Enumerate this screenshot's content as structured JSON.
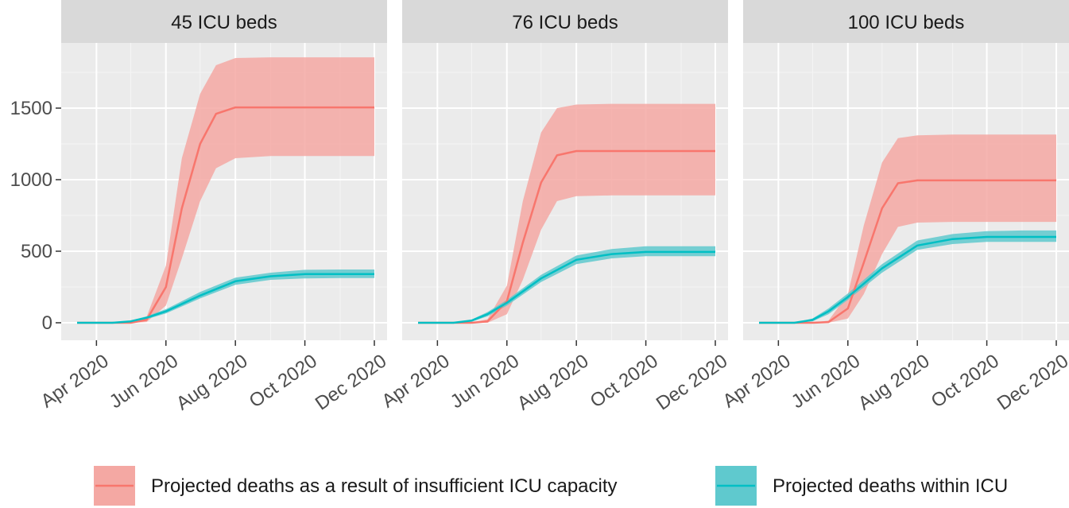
{
  "chart_data": {
    "type": "line",
    "facets": [
      {
        "title": "45 ICU beds",
        "series": [
          {
            "name": "Projected deaths as a result of insufficient ICU capacity",
            "color": "#F8766D",
            "points": [
              [
                "2020-03-15",
                0
              ],
              [
                "2020-04-15",
                0
              ],
              [
                "2020-05-01",
                0
              ],
              [
                "2020-05-15",
                20
              ],
              [
                "2020-06-01",
                250
              ],
              [
                "2020-06-15",
                800
              ],
              [
                "2020-07-01",
                1250
              ],
              [
                "2020-07-15",
                1460
              ],
              [
                "2020-08-01",
                1505
              ],
              [
                "2020-09-01",
                1505
              ],
              [
                "2020-10-01",
                1505
              ],
              [
                "2020-11-01",
                1505
              ],
              [
                "2020-12-01",
                1505
              ]
            ],
            "lower": [
              0,
              0,
              0,
              5,
              120,
              450,
              850,
              1080,
              1150,
              1165,
              1165,
              1165,
              1165
            ],
            "upper": [
              0,
              0,
              0,
              40,
              400,
              1150,
              1600,
              1800,
              1850,
              1855,
              1855,
              1855,
              1855
            ]
          },
          {
            "name": "Projected deaths within ICU",
            "color": "#00BFC4",
            "points": [
              [
                "2020-03-15",
                0
              ],
              [
                "2020-04-15",
                0
              ],
              [
                "2020-05-01",
                10
              ],
              [
                "2020-05-15",
                35
              ],
              [
                "2020-06-01",
                80
              ],
              [
                "2020-07-01",
                190
              ],
              [
                "2020-08-01",
                290
              ],
              [
                "2020-09-01",
                325
              ],
              [
                "2020-10-01",
                340
              ],
              [
                "2020-11-01",
                340
              ],
              [
                "2020-12-01",
                340
              ]
            ],
            "lower": [
              0,
              0,
              5,
              25,
              65,
              170,
              265,
              300,
              310,
              312,
              312
            ],
            "upper": [
              0,
              0,
              15,
              45,
              95,
              215,
              315,
              350,
              370,
              372,
              372
            ]
          }
        ]
      },
      {
        "title": "76 ICU beds",
        "series": [
          {
            "name": "Projected deaths as a result of insufficient ICU capacity",
            "color": "#F8766D",
            "points": [
              [
                "2020-03-15",
                0
              ],
              [
                "2020-04-15",
                0
              ],
              [
                "2020-05-01",
                0
              ],
              [
                "2020-05-15",
                10
              ],
              [
                "2020-06-01",
                150
              ],
              [
                "2020-06-15",
                560
              ],
              [
                "2020-07-01",
                980
              ],
              [
                "2020-07-15",
                1170
              ],
              [
                "2020-08-01",
                1200
              ],
              [
                "2020-09-01",
                1200
              ],
              [
                "2020-10-01",
                1200
              ],
              [
                "2020-11-01",
                1200
              ],
              [
                "2020-12-01",
                1200
              ]
            ],
            "lower": [
              0,
              0,
              0,
              0,
              60,
              300,
              650,
              850,
              885,
              890,
              890,
              890,
              890
            ],
            "upper": [
              0,
              0,
              0,
              25,
              260,
              850,
              1330,
              1500,
              1525,
              1530,
              1530,
              1530,
              1530
            ]
          },
          {
            "name": "Projected deaths within ICU",
            "color": "#00BFC4",
            "points": [
              [
                "2020-03-15",
                0
              ],
              [
                "2020-04-15",
                0
              ],
              [
                "2020-05-01",
                15
              ],
              [
                "2020-05-15",
                60
              ],
              [
                "2020-06-01",
                140
              ],
              [
                "2020-07-01",
                310
              ],
              [
                "2020-08-01",
                440
              ],
              [
                "2020-09-01",
                480
              ],
              [
                "2020-10-01",
                495
              ],
              [
                "2020-11-01",
                495
              ],
              [
                "2020-12-01",
                495
              ]
            ],
            "lower": [
              0,
              0,
              8,
              45,
              120,
              285,
              410,
              450,
              465,
              465,
              465
            ],
            "upper": [
              0,
              0,
              22,
              75,
              160,
              335,
              470,
              515,
              535,
              535,
              535
            ]
          }
        ]
      },
      {
        "title": "100 ICU beds",
        "series": [
          {
            "name": "Projected deaths as a result of insufficient ICU capacity",
            "color": "#F8766D",
            "points": [
              [
                "2020-03-15",
                0
              ],
              [
                "2020-04-15",
                0
              ],
              [
                "2020-05-01",
                0
              ],
              [
                "2020-05-15",
                5
              ],
              [
                "2020-06-01",
                100
              ],
              [
                "2020-06-15",
                420
              ],
              [
                "2020-07-01",
                800
              ],
              [
                "2020-07-15",
                975
              ],
              [
                "2020-08-01",
                995
              ],
              [
                "2020-09-01",
                995
              ],
              [
                "2020-10-01",
                995
              ],
              [
                "2020-11-01",
                995
              ],
              [
                "2020-12-01",
                995
              ]
            ],
            "lower": [
              0,
              0,
              0,
              0,
              30,
              200,
              480,
              670,
              700,
              705,
              705,
              705,
              705
            ],
            "upper": [
              0,
              0,
              0,
              15,
              200,
              680,
              1120,
              1290,
              1310,
              1315,
              1315,
              1315,
              1315
            ]
          },
          {
            "name": "Projected deaths within ICU",
            "color": "#00BFC4",
            "points": [
              [
                "2020-03-15",
                0
              ],
              [
                "2020-04-15",
                0
              ],
              [
                "2020-05-01",
                20
              ],
              [
                "2020-05-15",
                80
              ],
              [
                "2020-06-01",
                180
              ],
              [
                "2020-07-01",
                380
              ],
              [
                "2020-08-01",
                540
              ],
              [
                "2020-09-01",
                585
              ],
              [
                "2020-10-01",
                600
              ],
              [
                "2020-11-01",
                600
              ],
              [
                "2020-12-01",
                600
              ]
            ],
            "lower": [
              0,
              0,
              10,
              60,
              160,
              350,
              510,
              550,
              565,
              565,
              565
            ],
            "upper": [
              0,
              0,
              30,
              100,
              205,
              410,
              575,
              620,
              640,
              645,
              645
            ]
          }
        ]
      }
    ],
    "xlim": [
      "2020-03-15",
      "2020-12-01"
    ],
    "x_ticks": [
      "2020-04-01",
      "2020-06-01",
      "2020-08-01",
      "2020-10-01",
      "2020-12-01"
    ],
    "x_tick_labels": [
      "Apr 2020",
      "Jun 2020",
      "Aug 2020",
      "Oct 2020",
      "Dec 2020"
    ],
    "ylim": [
      -80,
      1950
    ],
    "y_ticks": [
      0,
      500,
      1000,
      1500
    ],
    "y_tick_labels": [
      "0",
      "500",
      "1000",
      "1500"
    ],
    "grid": true,
    "legend_position": "bottom",
    "legend": [
      {
        "label": "Projected deaths as a result of insufficient ICU capacity",
        "color": "#F8766D",
        "fill": "#F4A8A3"
      },
      {
        "label": "Projected deaths within ICU",
        "color": "#00BFC4",
        "fill": "#5FC9CE"
      }
    ],
    "colors": {
      "panel_bg": "#EBEBEB",
      "strip_bg": "#D9D9D9",
      "grid": "#FFFFFF",
      "text": "#1A1A1A"
    }
  }
}
